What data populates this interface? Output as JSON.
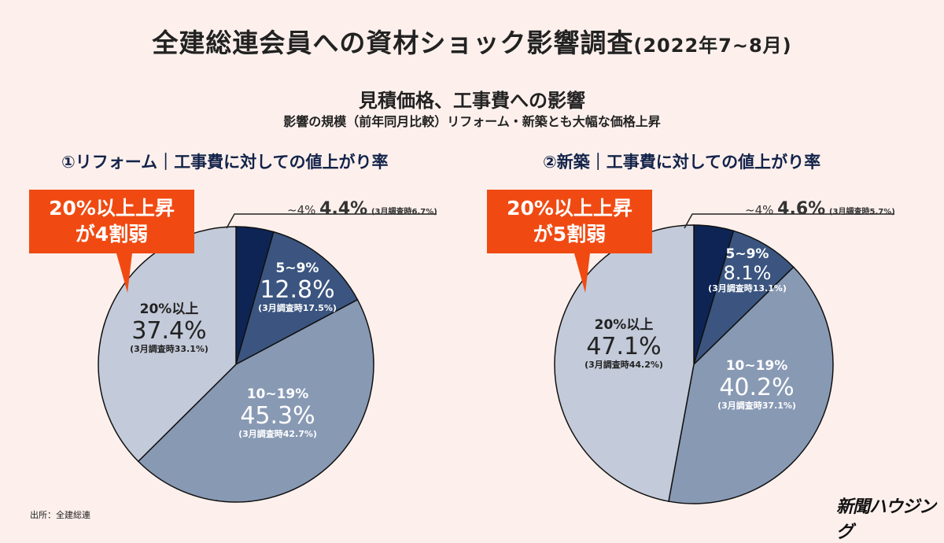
{
  "header": {
    "title": "全建総連会員への資材ショック影響調査",
    "title_period": "(2022年7~8月)",
    "subtitle": "見積価格、工事費への影響",
    "note": "影響の規模（前年同月比較）リフォーム・新築とも大幅な価格上昇"
  },
  "colors": {
    "background": "#fdf0ec",
    "slice1": "#0d2455",
    "slice2": "#3b5580",
    "slice3": "#8899b4",
    "slice4": "#c3cad9",
    "callout": "#f04a12"
  },
  "chart_data": [
    {
      "type": "pie",
      "title": "①リフォーム｜工事費に対しての値上がり率",
      "callout": "20%以上上昇",
      "callout2": "が4割弱",
      "slices": [
        {
          "label": "~4%",
          "value": 4.4,
          "value_text": "4.4%",
          "prev": "(3月調査時6.7%)"
        },
        {
          "label": "5~9%",
          "value": 12.8,
          "value_text": "12.8%",
          "prev": "(3月調査時17.5%)"
        },
        {
          "label": "10~19%",
          "value": 45.3,
          "value_text": "45.3%",
          "prev": "(3月調査時42.7%)"
        },
        {
          "label": "20%以上",
          "value": 37.4,
          "value_text": "37.4%",
          "prev": "(3月調査時33.1%)"
        }
      ]
    },
    {
      "type": "pie",
      "title": "②新築｜工事費に対しての値上がり率",
      "callout": "20%以上上昇",
      "callout2": "が5割弱",
      "slices": [
        {
          "label": "~4%",
          "value": 4.6,
          "value_text": "4.6%",
          "prev": "(3月調査時5.7%)"
        },
        {
          "label": "5~9%",
          "value": 8.1,
          "value_text": "8.1%",
          "prev": "(3月調査時13.1%)"
        },
        {
          "label": "10~19%",
          "value": 40.2,
          "value_text": "40.2%",
          "prev": "(3月調査時37.1%)"
        },
        {
          "label": "20%以上",
          "value": 47.1,
          "value_text": "47.1%",
          "prev": "(3月調査時44.2%)"
        }
      ]
    }
  ],
  "footer": {
    "source": "出所：全建総連",
    "logo": "新聞ハウジング"
  }
}
